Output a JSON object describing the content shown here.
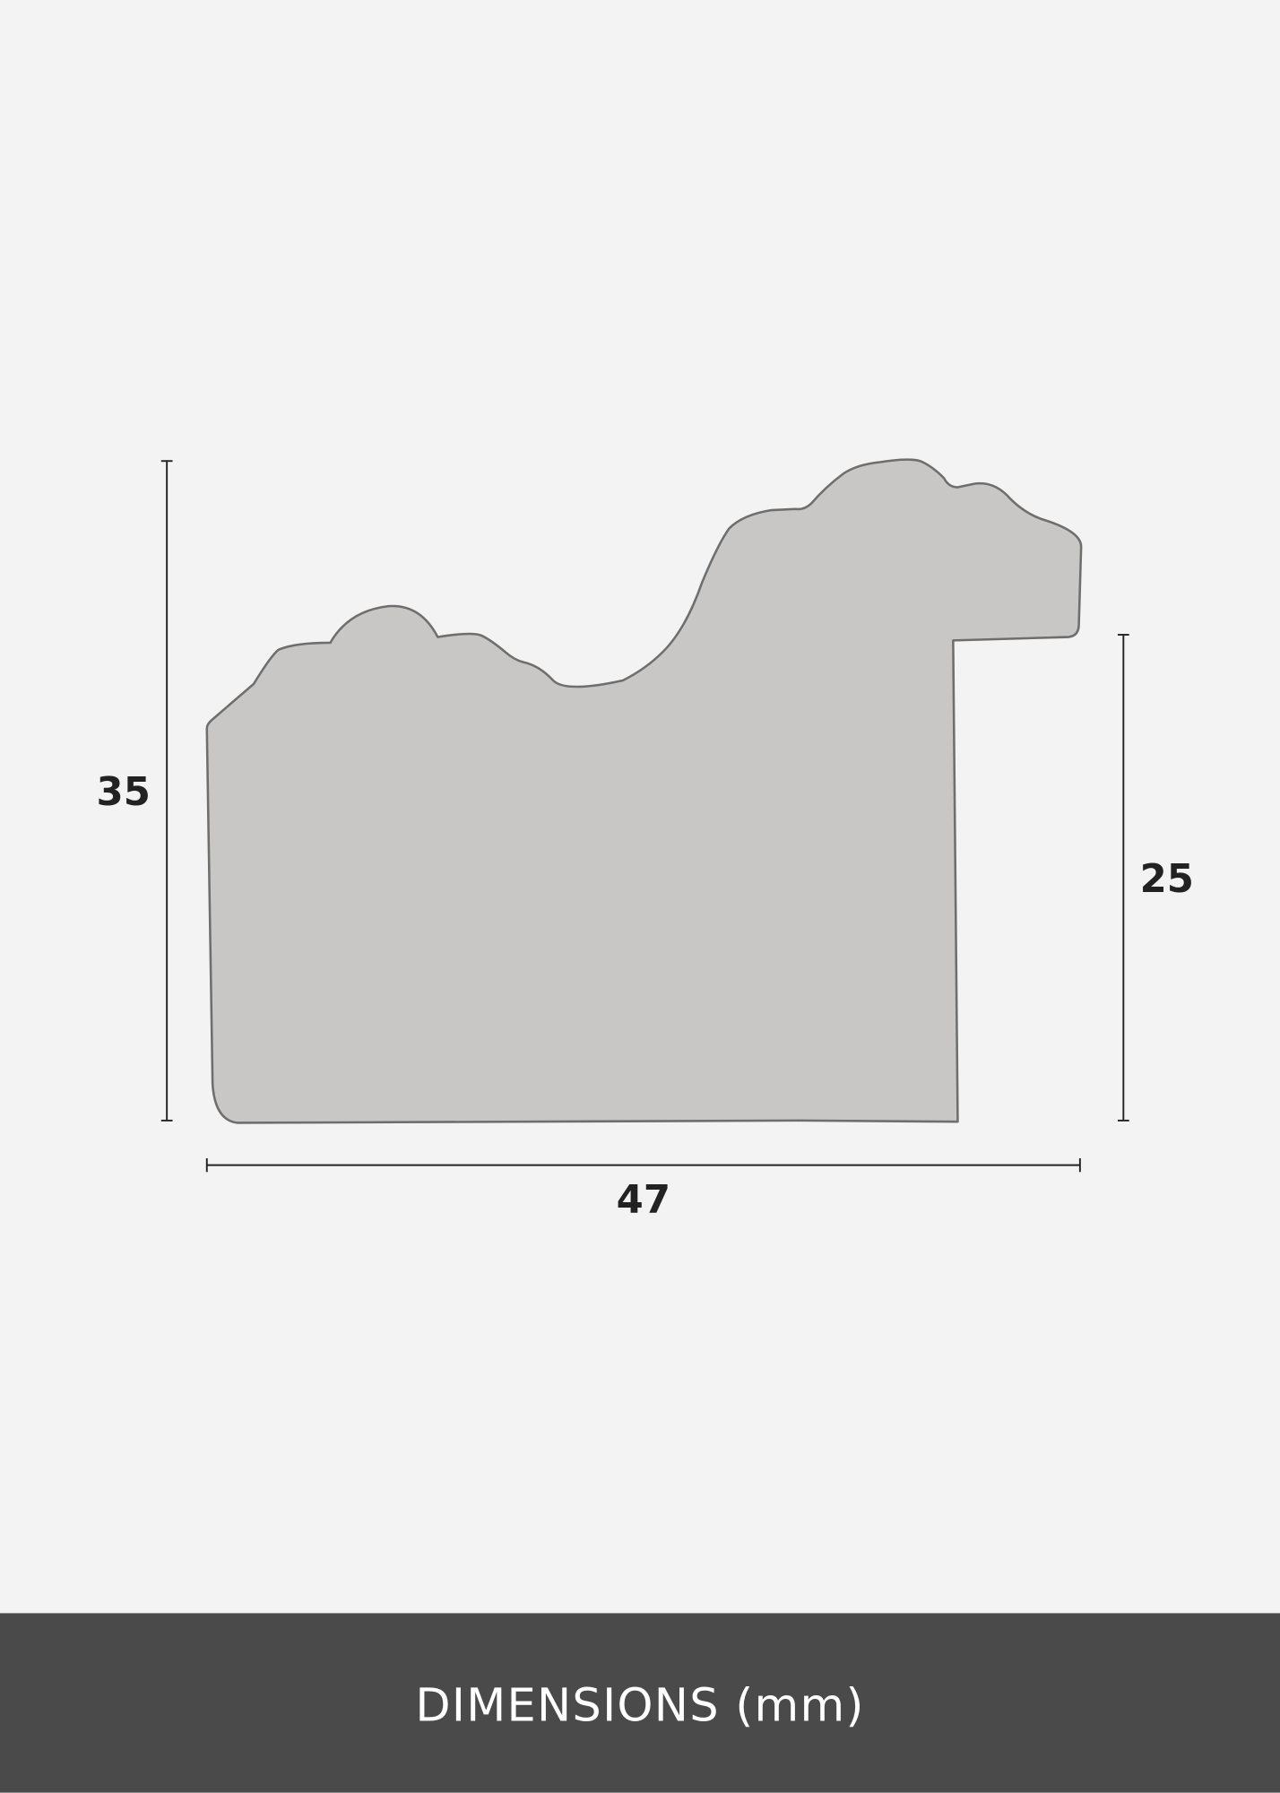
{
  "dimensions": {
    "height_total": "35",
    "height_rebate": "25",
    "width": "47"
  },
  "footer": {
    "label": "DIMENSIONS (mm)"
  },
  "colors": {
    "background": "#f3f3f3",
    "profile_fill": "#c8c7c5",
    "profile_stroke": "#6e6e6e",
    "footer_band": "#4a4a4a",
    "footer_text": "#ffffff"
  }
}
